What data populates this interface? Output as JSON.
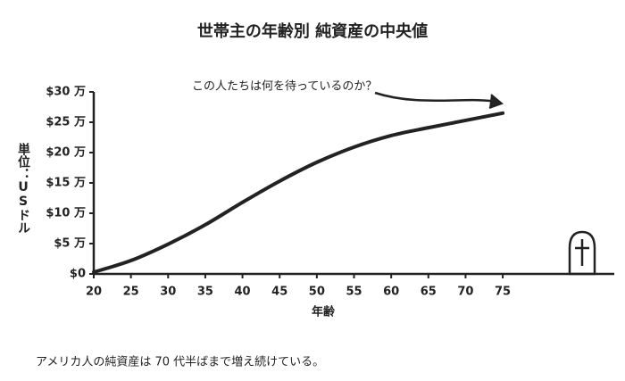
{
  "chart_data": {
    "type": "line",
    "title": "世帯主の年齢別 純資産の中央値",
    "annotation": "この人たちは何を待っているのか？",
    "caption": "アメリカ人の純資産は 70 代半ばまで増え続けている。",
    "x_label": "年齢",
    "y_label": "単位：USドル",
    "x": [
      20,
      25,
      30,
      35,
      40,
      45,
      50,
      55,
      60,
      65,
      70,
      75
    ],
    "values": [
      0.3,
      2.2,
      4.9,
      8.1,
      11.8,
      15.3,
      18.4,
      20.9,
      22.8,
      24.1,
      25.3,
      26.5
    ],
    "color": "#222222",
    "xlim": [
      20,
      90
    ],
    "ylim": [
      0,
      30
    ],
    "xticks": [
      20,
      25,
      30,
      35,
      40,
      45,
      50,
      55,
      60,
      65,
      70,
      75
    ],
    "yticks": [
      {
        "value": 0,
        "label": "$0"
      },
      {
        "value": 5,
        "label": "$5 万"
      },
      {
        "value": 10,
        "label": "$10 万"
      },
      {
        "value": 15,
        "label": "$15 万"
      },
      {
        "value": 20,
        "label": "$20 万"
      },
      {
        "value": 25,
        "label": "$25 万"
      },
      {
        "value": 30,
        "label": "$30 万"
      }
    ]
  }
}
